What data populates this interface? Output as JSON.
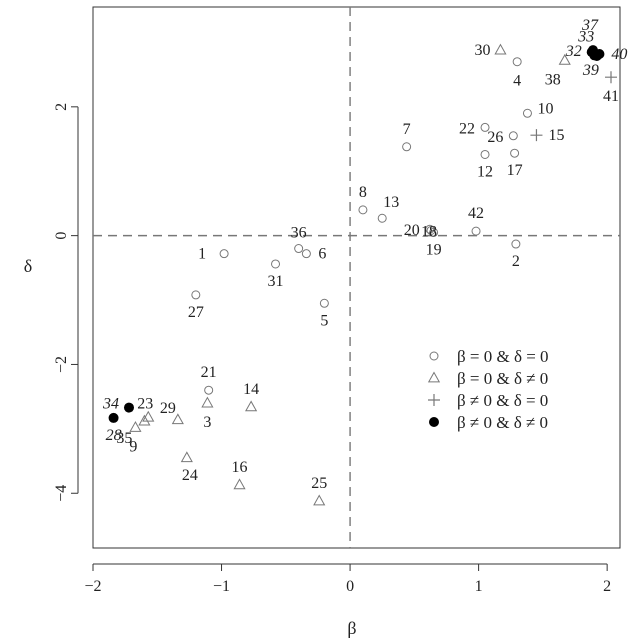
{
  "chart_data": {
    "type": "scatter",
    "xlabel": "β",
    "ylabel": "δ",
    "xlim": [
      -2,
      2.1
    ],
    "ylim": [
      -4.85,
      3.55
    ],
    "xticks": [
      {
        "v": -2,
        "t": "−2"
      },
      {
        "v": -1,
        "t": "−1"
      },
      {
        "v": 0,
        "t": "0"
      },
      {
        "v": 1,
        "t": "1"
      },
      {
        "v": 2,
        "t": "2"
      }
    ],
    "yticks": [
      {
        "v": -4,
        "t": "−4"
      },
      {
        "v": -2,
        "t": "−2"
      },
      {
        "v": 0,
        "t": "0"
      },
      {
        "v": 2,
        "t": "2"
      }
    ],
    "reference_lines": {
      "x": 0,
      "y": 0,
      "style": "dashed"
    },
    "grid": false,
    "legend_position": "bottom-right",
    "series": [
      {
        "name": "β = 0 & δ = 0",
        "marker": "circle-open",
        "points": [
          {
            "label": "1",
            "x": -0.98,
            "y": -0.28
          },
          {
            "label": "2",
            "x": 1.29,
            "y": -0.13
          },
          {
            "label": "4",
            "x": 1.3,
            "y": 2.7
          },
          {
            "label": "5",
            "x": -0.2,
            "y": -1.05
          },
          {
            "label": "6",
            "x": -0.34,
            "y": -0.28
          },
          {
            "label": "7",
            "x": 0.44,
            "y": 1.38
          },
          {
            "label": "8",
            "x": 0.1,
            "y": 0.4
          },
          {
            "label": "10",
            "x": 1.38,
            "y": 1.9
          },
          {
            "label": "12",
            "x": 1.05,
            "y": 1.26
          },
          {
            "label": "13",
            "x": 0.25,
            "y": 0.27
          },
          {
            "label": "17",
            "x": 1.28,
            "y": 1.28
          },
          {
            "label": "18",
            "x": 0.63,
            "y": 0.08
          },
          {
            "label": "19",
            "x": 0.65,
            "y": 0.05
          },
          {
            "label": "20",
            "x": 0.62,
            "y": 0.1
          },
          {
            "label": "21",
            "x": -1.1,
            "y": -2.4
          },
          {
            "label": "22",
            "x": 1.05,
            "y": 1.68
          },
          {
            "label": "26",
            "x": 1.27,
            "y": 1.55
          },
          {
            "label": "27",
            "x": -1.2,
            "y": -0.92
          },
          {
            "label": "31",
            "x": -0.58,
            "y": -0.44
          },
          {
            "label": "36",
            "x": -0.4,
            "y": -0.2
          },
          {
            "label": "42",
            "x": 0.98,
            "y": 0.07
          }
        ]
      },
      {
        "name": "β = 0 & δ ≠ 0",
        "marker": "triangle-open",
        "points": [
          {
            "label": "3",
            "x": -1.11,
            "y": -2.6
          },
          {
            "label": "9",
            "x": -1.67,
            "y": -2.98
          },
          {
            "label": "14",
            "x": -0.77,
            "y": -2.66
          },
          {
            "label": "16",
            "x": -0.86,
            "y": -3.87
          },
          {
            "label": "23",
            "x": -1.57,
            "y": -2.82
          },
          {
            "label": "24",
            "x": -1.27,
            "y": -3.45
          },
          {
            "label": "25",
            "x": -0.24,
            "y": -4.12
          },
          {
            "label": "29",
            "x": -1.34,
            "y": -2.86
          },
          {
            "label": "30",
            "x": 1.17,
            "y": 2.88
          },
          {
            "label": "35",
            "x": -1.6,
            "y": -2.88
          },
          {
            "label": "38",
            "x": 1.67,
            "y": 2.72
          }
        ]
      },
      {
        "name": "β ≠ 0 & δ = 0",
        "marker": "plus",
        "points": [
          {
            "label": "15",
            "x": 1.45,
            "y": 1.56
          },
          {
            "label": "41",
            "x": 2.03,
            "y": 2.46
          }
        ]
      },
      {
        "name": "β ≠ 0 & δ ≠ 0",
        "marker": "circle-filled",
        "points": [
          {
            "label": "28",
            "x": -1.84,
            "y": -2.83
          },
          {
            "label": "32",
            "x": 1.88,
            "y": 2.85
          },
          {
            "label": "33",
            "x": 1.9,
            "y": 2.8
          },
          {
            "label": "34",
            "x": -1.72,
            "y": -2.67
          },
          {
            "label": "37",
            "x": 1.89,
            "y": 2.88
          },
          {
            "label": "39",
            "x": 1.92,
            "y": 2.79
          },
          {
            "label": "40",
            "x": 1.94,
            "y": 2.82
          }
        ]
      }
    ]
  }
}
